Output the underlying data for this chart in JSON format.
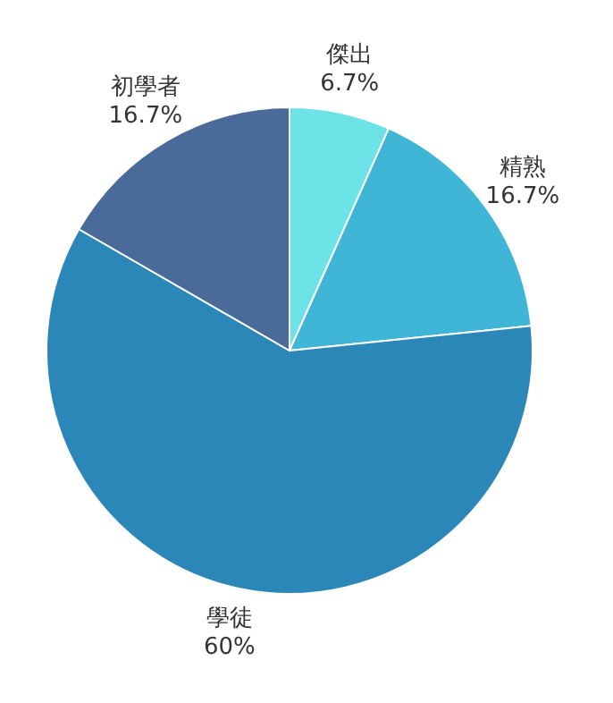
{
  "chart_data": {
    "type": "pie",
    "categories": [
      "傑出",
      "精熟",
      "學徒",
      "初學者"
    ],
    "values": [
      6.7,
      16.7,
      60,
      16.7
    ],
    "value_labels": [
      "6.7%",
      "16.7%",
      "60%",
      "16.7%"
    ],
    "colors": [
      "#6ce3e6",
      "#40b6d6",
      "#2b87b8",
      "#4a6b9a"
    ]
  }
}
